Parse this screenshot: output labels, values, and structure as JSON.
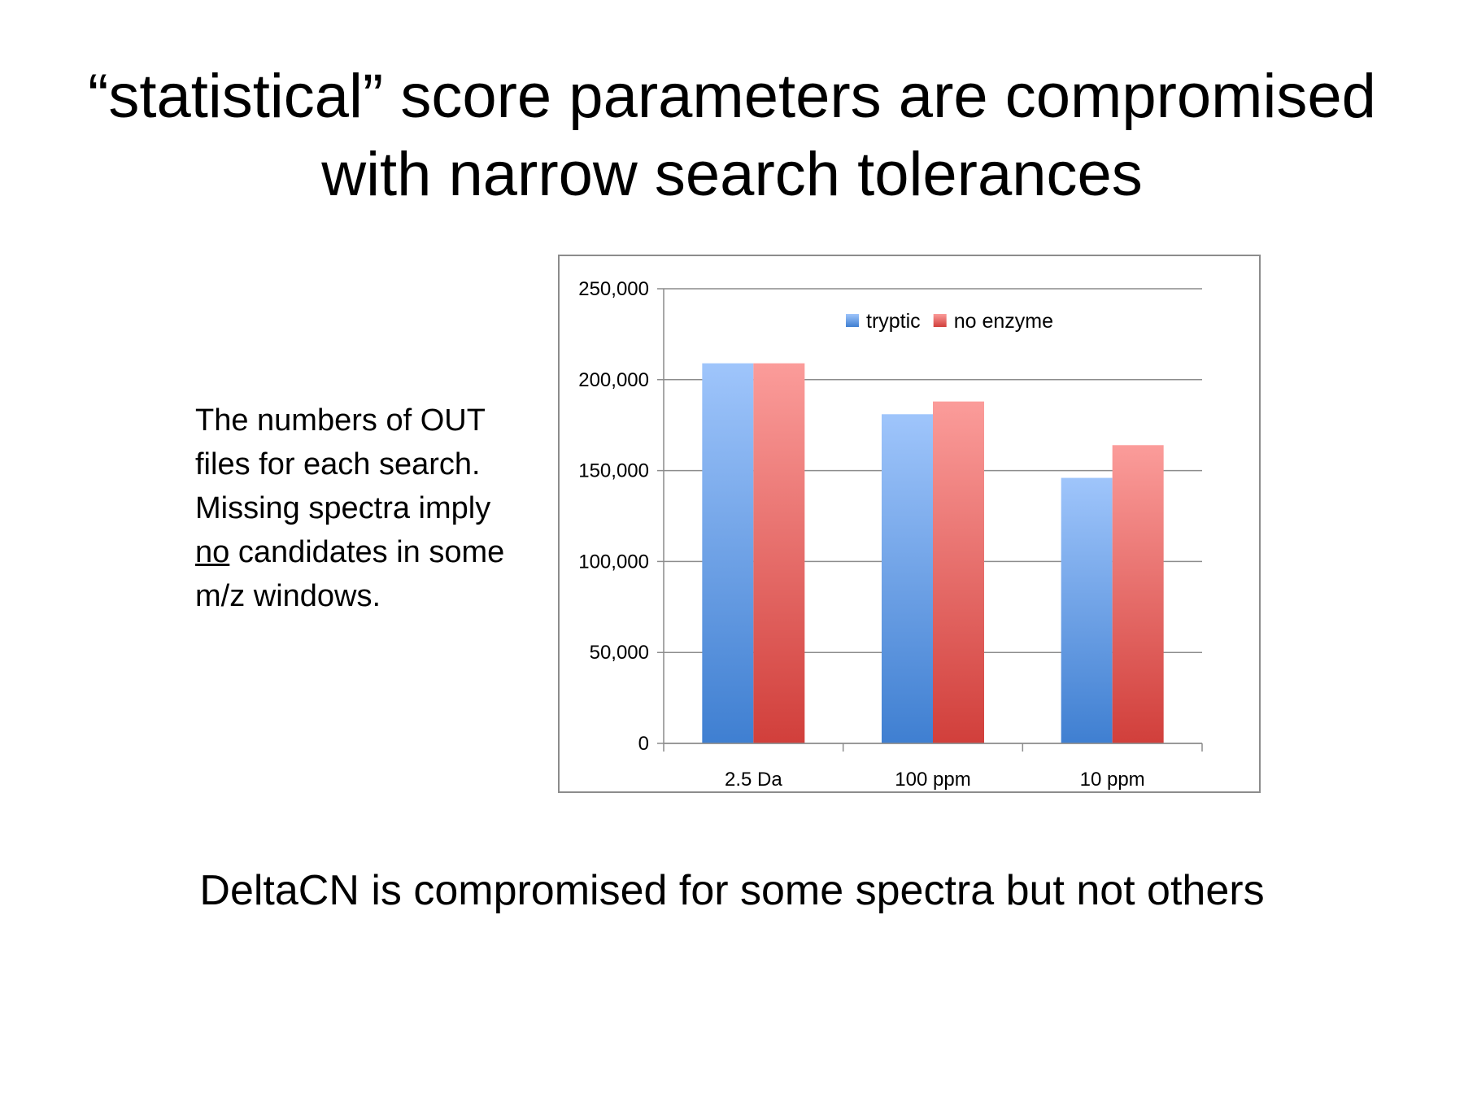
{
  "slide": {
    "title_line_1": "“statistical” score parameters are compromised",
    "title_line_2": "with narrow search tolerances",
    "side_text": {
      "line_1": "The numbers of OUT",
      "line_2": "files for each search.",
      "line_3": "Missing spectra imply",
      "line_4_underlined": "no",
      "line_4_rest": " candidates in some",
      "line_5": "m/z windows."
    },
    "bottom_text": "DeltaCN is compromised for some spectra but not others"
  },
  "chart_data": {
    "type": "bar",
    "categories": [
      "2.5 Da",
      "100 ppm",
      "10 ppm"
    ],
    "series": [
      {
        "name": "tryptic",
        "values": [
          209000,
          181000,
          146000
        ],
        "color_top": "#9fc5fb",
        "color_bottom": "#3f7fd1"
      },
      {
        "name": "no enzyme",
        "values": [
          209000,
          188000,
          164000
        ],
        "color_top": "#fb9c9a",
        "color_bottom": "#d13f3b"
      }
    ],
    "ylim": [
      0,
      250000
    ],
    "y_ticks": [
      0,
      50000,
      100000,
      150000,
      200000,
      250000
    ],
    "y_tick_labels": [
      "0",
      "50,000",
      "100,000",
      "150,000",
      "200,000",
      "250,000"
    ],
    "grid": true,
    "legend_position": "top-center",
    "title": "",
    "xlabel": "",
    "ylabel": ""
  }
}
